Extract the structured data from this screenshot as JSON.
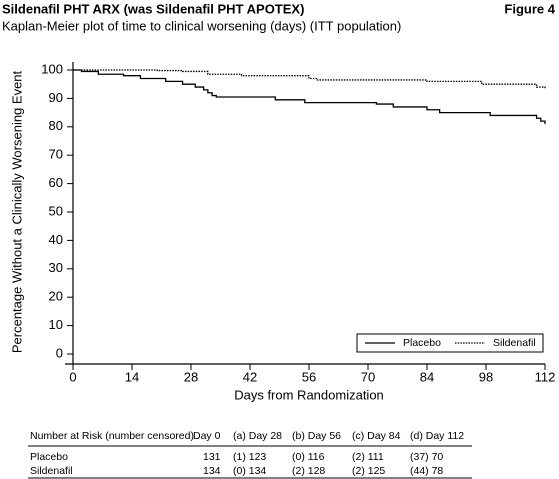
{
  "chart_data": {
    "type": "step",
    "title": "Sildenafil PHT ARX (was Sildenafil PHT APOTEX)",
    "figure_label": "Figure 4",
    "subtitle": "Kaplan-Meier plot of time to clinical worsening (days) (ITT population)",
    "x_label": "Days from Randomization",
    "y_label": "Percentage Without a Clinically Worsening  Event",
    "xlim": [
      0,
      112
    ],
    "xticks": [
      0,
      14,
      28,
      42,
      56,
      70,
      84,
      98,
      112
    ],
    "ylim": [
      0,
      100
    ],
    "yticks": [
      0,
      10,
      20,
      30,
      40,
      50,
      60,
      70,
      80,
      90,
      100
    ],
    "legend": "lower right",
    "series": [
      {
        "name": "Placebo",
        "color": "#000000",
        "dash": "solid",
        "x": [
          0,
          2,
          6,
          12,
          16,
          22,
          26,
          29,
          31,
          32,
          33,
          34,
          48,
          55,
          72,
          76,
          84,
          87,
          99,
          110,
          111,
          112
        ],
        "values": [
          100,
          99.5,
          98.5,
          98,
          97,
          96,
          95,
          94,
          93,
          92,
          91,
          90.5,
          89.5,
          88.5,
          88,
          87,
          86,
          85,
          84,
          83,
          82,
          81
        ]
      },
      {
        "name": "Sildenafil",
        "color": "#000000",
        "dash": "dotted",
        "x": [
          0,
          20,
          26,
          32,
          40,
          56,
          58,
          84,
          97,
          110,
          112
        ],
        "values": [
          100,
          99.8,
          99.5,
          98.5,
          98,
          97,
          96.5,
          96,
          95,
          94,
          93.5
        ]
      }
    ]
  },
  "table": {
    "header": [
      "Number at Risk (number censored)",
      "Day 0",
      "(a) Day 28",
      "(b) Day 56",
      "(c) Day 84",
      "(d) Day 112"
    ],
    "rows": [
      [
        "Placebo",
        "131",
        "(1) 123",
        "(0) 116",
        "(2) 111",
        "(37) 70"
      ],
      [
        "Sildenafil",
        "134",
        "(0) 134",
        "(2) 128",
        "(2) 125",
        "(44) 78"
      ]
    ]
  }
}
